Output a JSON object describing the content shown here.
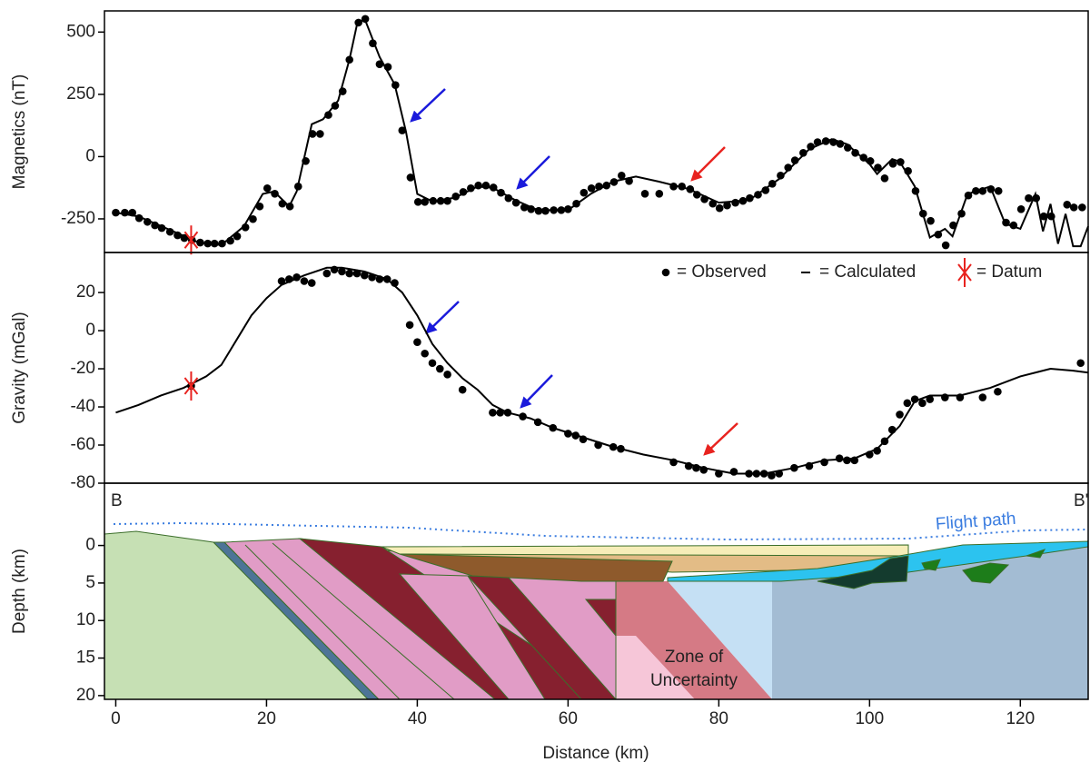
{
  "chart_data": [
    {
      "type": "profile",
      "ylabel": "Magnetics (nT)",
      "xlim": [
        -1.5,
        129
      ],
      "ylim": [
        -385,
        585
      ],
      "yticks": [
        -250,
        0,
        250,
        500
      ],
      "series": [
        {
          "color": "#000000",
          "style": "points",
          "x": [
            0,
            1.2,
            2.2,
            3.1,
            4.2,
            5.2,
            6.1,
            7.2,
            8.2,
            9.1,
            10.1,
            11.2,
            12.2,
            13.1,
            14.1,
            15.2,
            16.1,
            17.2,
            18.2,
            19.1,
            20.1,
            21.1,
            22.1,
            23.1,
            24.2,
            25.2,
            26.1,
            27.1,
            28.2,
            29.1,
            30.1,
            31,
            32.2,
            33.1,
            34.1,
            35,
            36.1,
            37.1,
            38,
            39.1,
            40.1,
            41,
            42.1,
            43.1,
            44,
            45.1,
            46.1,
            47.1,
            48.1,
            49.1,
            50.1,
            51.1,
            52.1,
            53.1,
            54.2,
            55.1,
            56.1,
            57,
            58.1,
            59.1,
            60,
            61.1,
            62.1,
            63.1,
            64.1,
            65.1,
            66.1,
            67.1,
            68.1,
            70.2,
            72.1,
            74,
            75.1,
            76.2,
            77.1,
            78.1,
            79.2,
            80.1,
            81.1,
            82.2,
            83.2,
            84.1,
            85.2,
            86.2,
            87.1,
            88.2,
            89.2,
            90.1,
            91.2,
            92.2,
            93.1,
            94.2,
            95.2,
            96.1,
            97.1,
            98.1,
            99.2,
            100.1,
            101.1,
            102,
            103.1,
            104.1,
            105.1,
            106.1,
            107.1,
            108.1,
            109.1,
            110.1,
            111.1,
            112.2,
            113.1,
            114.1,
            115,
            116.1,
            117.1,
            118.1,
            119.1,
            120.1,
            121.1,
            122.1,
            123.1,
            124.1,
            126.2,
            127.1,
            128.2
          ],
          "values": [
            -225,
            -225,
            -225,
            -247,
            -262,
            -276,
            -287,
            -302,
            -316,
            -327,
            -335,
            -345,
            -349,
            -349,
            -349,
            -338,
            -320,
            -284,
            -251,
            -200,
            -127,
            -149,
            -189,
            -200,
            -120,
            -18,
            91,
            91,
            167,
            204,
            262,
            389,
            538,
            553,
            455,
            371,
            360,
            287,
            105,
            -84,
            -182,
            -182,
            -178,
            -178,
            -178,
            -160,
            -142,
            -127,
            -116,
            -116,
            -124,
            -145,
            -167,
            -185,
            -204,
            -211,
            -218,
            -218,
            -215,
            -215,
            -211,
            -189,
            -145,
            -127,
            -120,
            -116,
            -102,
            -76,
            -98,
            -149,
            -149,
            -120,
            -120,
            -131,
            -153,
            -171,
            -189,
            -207,
            -196,
            -185,
            -178,
            -167,
            -153,
            -135,
            -109,
            -76,
            -44,
            -15,
            15,
            40,
            58,
            62,
            58,
            51,
            36,
            15,
            -4,
            -18,
            -44,
            -87,
            -29,
            -22,
            -58,
            -138,
            -229,
            -258,
            -313,
            -356,
            -276,
            -229,
            -156,
            -138,
            -138,
            -131,
            -138,
            -265,
            -276,
            -211,
            -167,
            -167,
            -240,
            -240,
            -193,
            -204,
            -204
          ]
        },
        {
          "color": "#000000",
          "style": "line",
          "x": [
            0,
            3,
            8,
            11,
            14,
            17,
            19.5,
            21,
            23,
            24,
            26,
            27.5,
            29.5,
            31,
            32,
            33,
            35,
            37,
            38.5,
            40,
            42,
            45,
            48,
            50,
            53,
            56,
            60,
            63,
            66,
            69,
            72,
            76,
            80,
            84,
            88,
            92,
            95,
            97,
            100,
            101,
            103,
            104,
            106,
            108,
            110,
            111,
            113,
            116,
            118,
            120,
            122,
            123,
            124,
            125,
            126,
            127,
            128,
            129
          ],
          "values": [
            -225,
            -240,
            -305,
            -345,
            -355,
            -280,
            -150,
            -140,
            -200,
            -140,
            130,
            150,
            225,
            390,
            530,
            555,
            400,
            290,
            100,
            -150,
            -180,
            -165,
            -120,
            -125,
            -175,
            -215,
            -215,
            -150,
            -100,
            -80,
            -100,
            -130,
            -185,
            -175,
            -90,
            30,
            70,
            50,
            -30,
            -70,
            -10,
            -20,
            -120,
            -325,
            -290,
            -320,
            -150,
            -120,
            -270,
            -290,
            -150,
            -300,
            -190,
            -350,
            -230,
            -360,
            -360,
            -280
          ]
        }
      ],
      "datum": {
        "x": 10,
        "value": -335
      }
    },
    {
      "type": "profile",
      "ylabel": "Gravity (mGal)",
      "xlim": [
        -1.5,
        129
      ],
      "ylim": [
        -80,
        41
      ],
      "yticks": [
        -80,
        -60,
        -40,
        -20,
        0,
        20
      ],
      "series": [
        {
          "name": "= Observed",
          "color": "#000000",
          "style": "points",
          "x": [
            10,
            22,
            23,
            24,
            25,
            26,
            28,
            29,
            30,
            31,
            32,
            33,
            34,
            35,
            36,
            37,
            39,
            40,
            41,
            42,
            43,
            44,
            46,
            50,
            51,
            52,
            54,
            56,
            58,
            60,
            61,
            62,
            64,
            66,
            67,
            74,
            76,
            77,
            78,
            80,
            82,
            84,
            85,
            86,
            87,
            88,
            90,
            92,
            94,
            96,
            97,
            98,
            100,
            101,
            102,
            103,
            104,
            105,
            106,
            107,
            108,
            110,
            112,
            115,
            117,
            128
          ],
          "values": [
            -29,
            26,
            27,
            28,
            26,
            25,
            30,
            32,
            31,
            30,
            30,
            29,
            28,
            27,
            27,
            25,
            3,
            -6,
            -12,
            -17,
            -20,
            -23,
            -31,
            -43,
            -43,
            -43,
            -45,
            -48,
            -51,
            -54,
            -55,
            -57,
            -60,
            -61,
            -62,
            -69,
            -71,
            -72,
            -73,
            -75,
            -74,
            -75,
            -75,
            -75,
            -76,
            -75,
            -72,
            -71,
            -69,
            -67,
            -68,
            -68,
            -65,
            -63,
            -58,
            -52,
            -44,
            -38,
            -36,
            -38,
            -36,
            -35,
            -35,
            -35,
            -32,
            -17
          ]
        },
        {
          "name": "= Calculated",
          "color": "#000000",
          "style": "line",
          "x": [
            0,
            3,
            6,
            9,
            12,
            14,
            16,
            18,
            20,
            22,
            25,
            28,
            30,
            33,
            36,
            38,
            40,
            42,
            44,
            46,
            48,
            50,
            52,
            55,
            58,
            62,
            66,
            70,
            74,
            78,
            82,
            86,
            90,
            94,
            98,
            101,
            104,
            106,
            108,
            112,
            116,
            120,
            124,
            127,
            129
          ],
          "values": [
            -43,
            -39,
            -34,
            -30,
            -24,
            -18,
            -5,
            8,
            17,
            24,
            29,
            33,
            33,
            31,
            27,
            20,
            8,
            -7,
            -17,
            -25,
            -31,
            -39,
            -43,
            -46,
            -51,
            -56,
            -61,
            -65,
            -68,
            -72,
            -75,
            -75,
            -72,
            -68,
            -67,
            -62,
            -50,
            -37,
            -34,
            -34,
            -30,
            -24,
            -20,
            -21,
            -22
          ]
        }
      ],
      "datum": {
        "name": "= Datum",
        "x": 10,
        "value": -29
      }
    },
    {
      "type": "section",
      "ylabel": "Depth (km)",
      "xlabel": "Distance (km)",
      "xlim": [
        -1.5,
        129
      ],
      "xticks": [
        0,
        20,
        40,
        60,
        80,
        100,
        120
      ],
      "ylim": [
        20.5,
        -8.3
      ],
      "yticks": [
        0,
        5,
        10,
        15,
        20
      ],
      "start_label": "B",
      "end_label": "B'",
      "flight_label": "Flight path",
      "zone_label": [
        "Zone of",
        "Uncertainty"
      ]
    }
  ]
}
